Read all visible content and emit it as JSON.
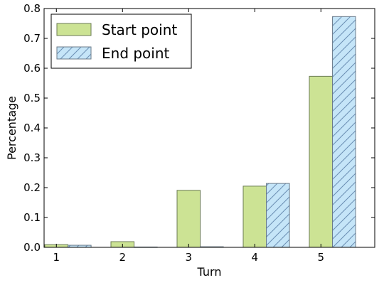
{
  "chart_data": {
    "type": "bar",
    "title": "",
    "xlabel": "Turn",
    "ylabel": "Percentage",
    "categories": [
      "1",
      "2",
      "3",
      "4",
      "5"
    ],
    "ylim": [
      0,
      0.8
    ],
    "yticks": [
      "0.0",
      "0.1",
      "0.2",
      "0.3",
      "0.4",
      "0.5",
      "0.6",
      "0.7",
      "0.8"
    ],
    "grid": false,
    "legend_position": "top-left",
    "series": [
      {
        "name": "Start point",
        "values": [
          0.009,
          0.019,
          0.191,
          0.205,
          0.573
        ],
        "color": "#cce394",
        "hatch": false
      },
      {
        "name": "End point",
        "values": [
          0.007,
          0.001,
          0.002,
          0.214,
          0.773
        ],
        "color": "#c5e5f8",
        "hatch": true
      }
    ]
  }
}
